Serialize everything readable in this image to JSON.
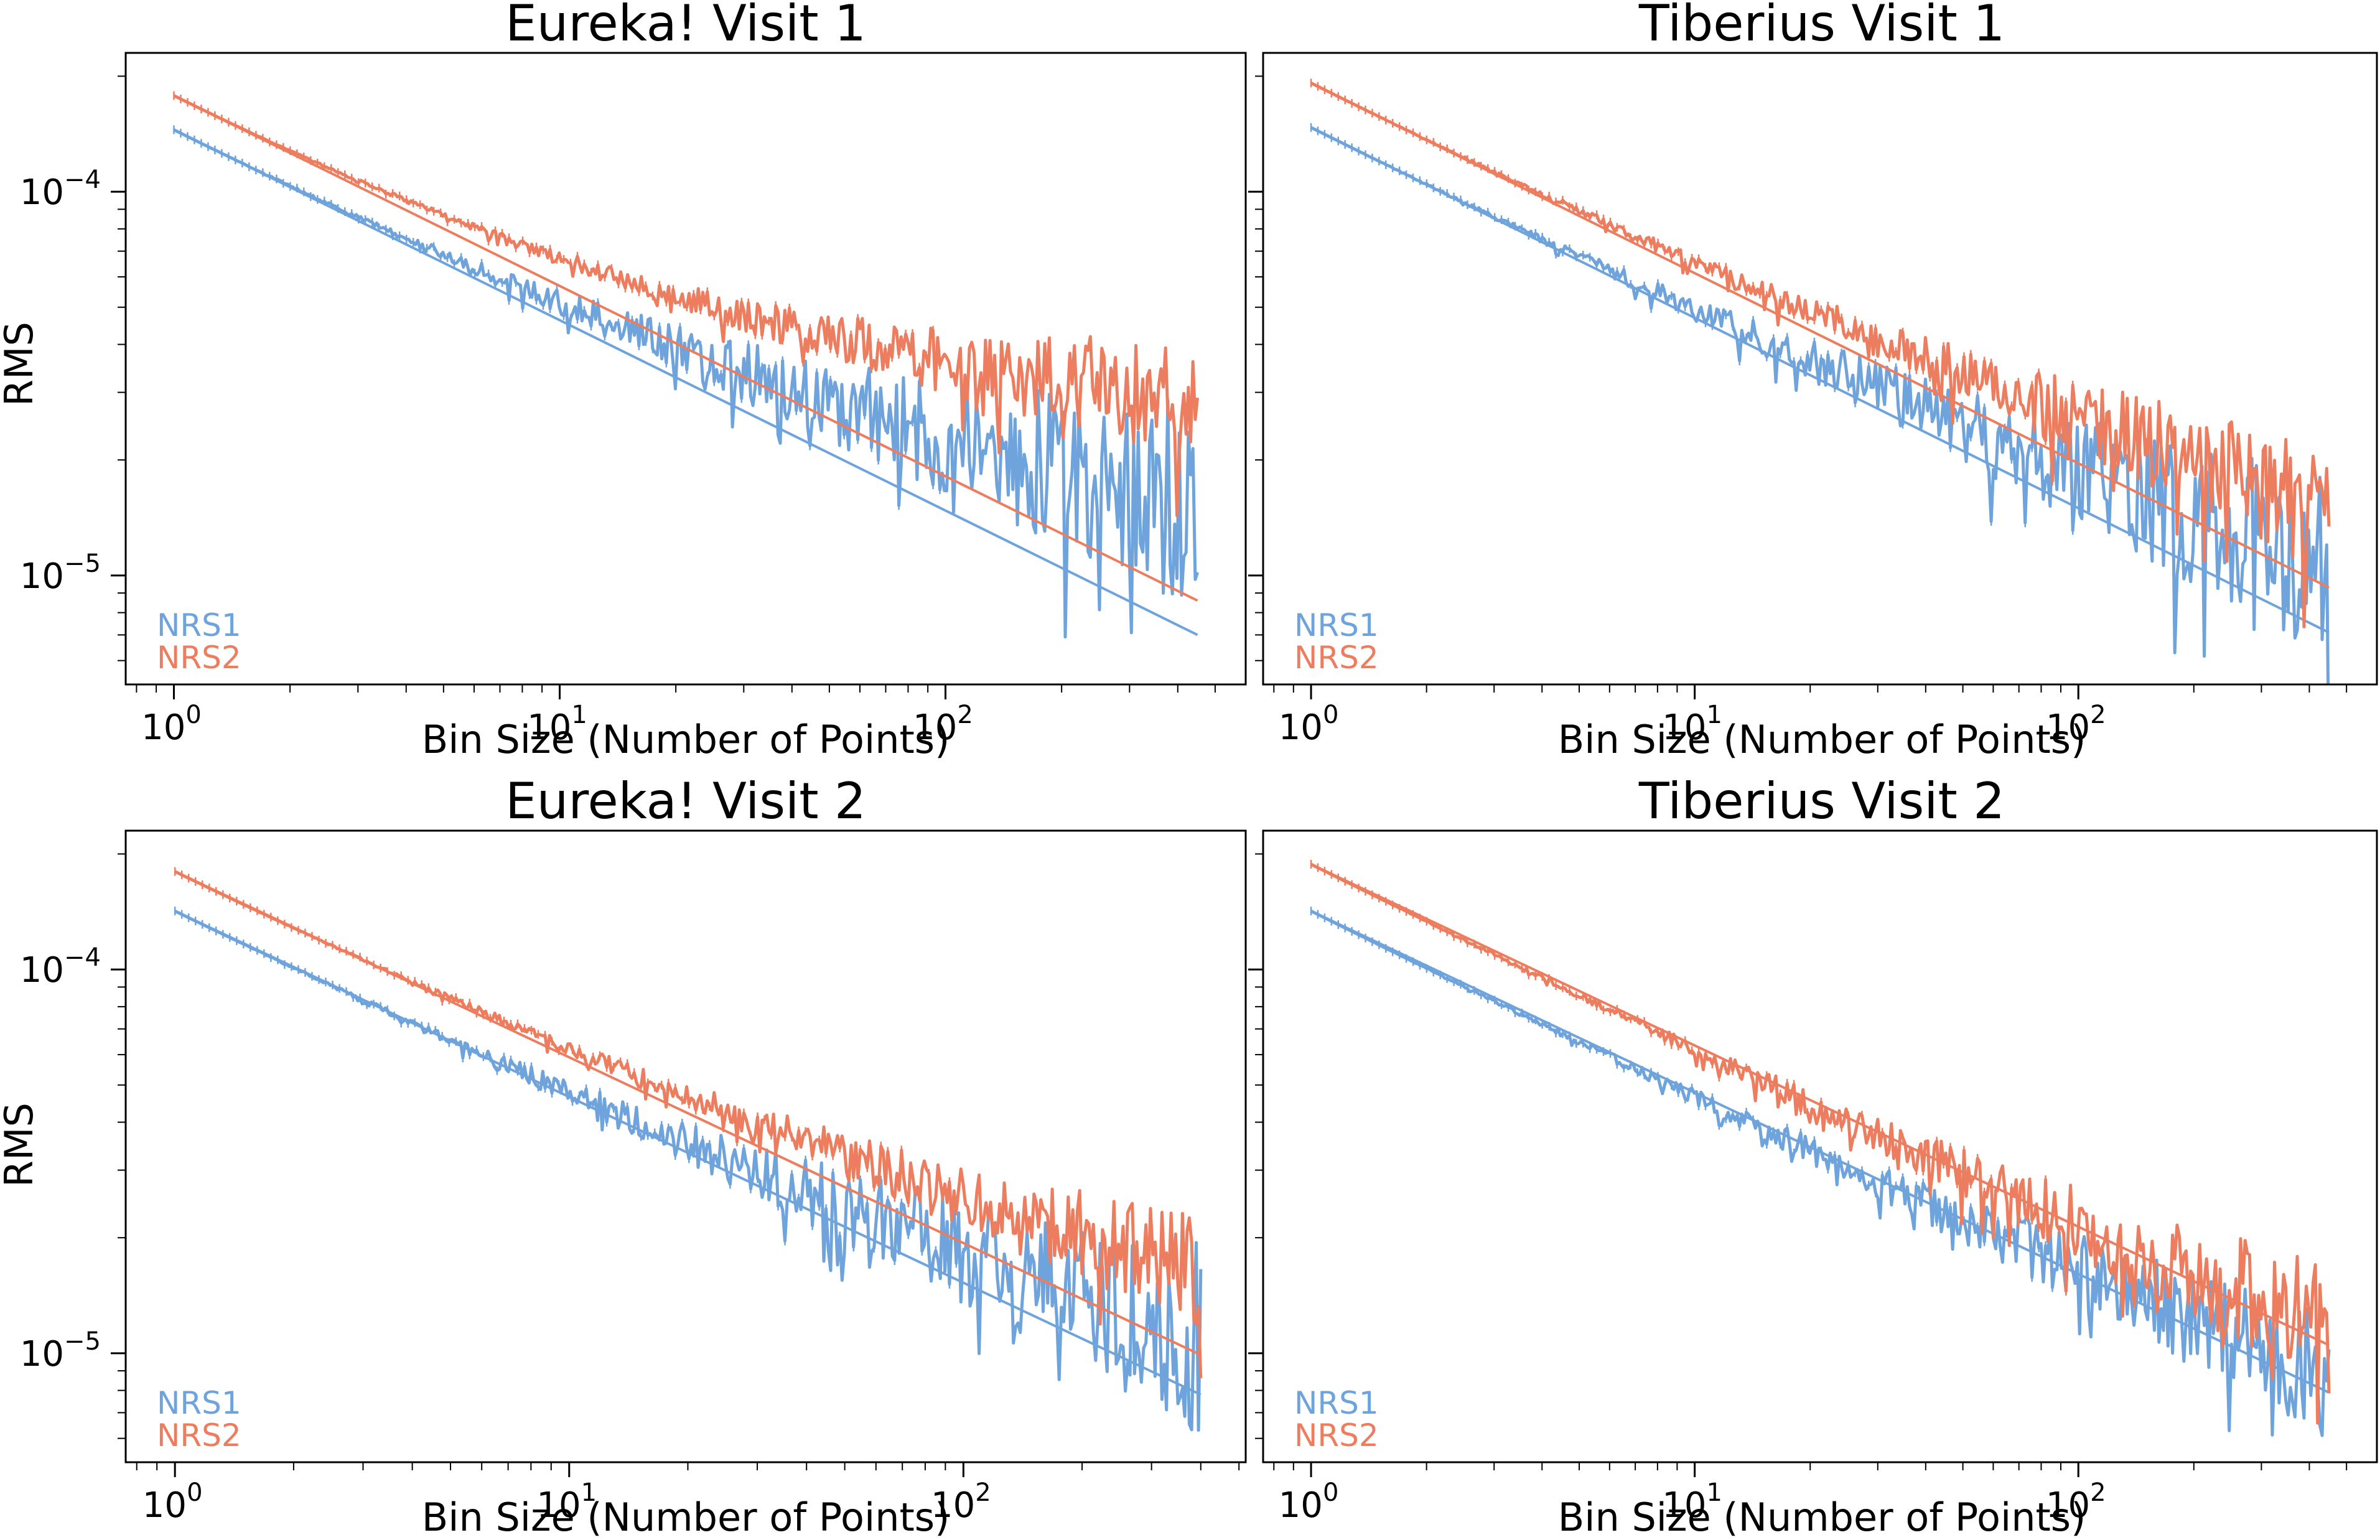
{
  "figure": {
    "ylabel": "RMS"
  },
  "colors": {
    "NRS1": "#6ea3dc",
    "NRS2": "#ec7d5f",
    "axes": "#000000"
  },
  "chart_data": [
    {
      "type": "line",
      "title": "Eureka! Visit 1",
      "xlabel": "Bin Size (Number of Points)",
      "ylabel": "RMS",
      "xscale": "log",
      "yscale": "log",
      "xlim": [
        0.75,
        600
      ],
      "ylim": [
        5.2e-06,
        0.00023
      ],
      "xticks": [
        {
          "base": "10",
          "exp": "0"
        },
        {
          "base": "10",
          "exp": "1"
        },
        {
          "base": "10",
          "exp": "2"
        }
      ],
      "yticks": [
        {
          "base": "10",
          "exp": "−5"
        },
        {
          "base": "10",
          "exp": "−4"
        }
      ],
      "legend": [
        "NRS1",
        "NRS2"
      ],
      "legend_loc": "lower-left",
      "series": [
        {
          "name": "NRS1",
          "kind": "measured",
          "start": 0.000145,
          "knee": 0.09,
          "slope": -0.28,
          "end_bin": 450,
          "noise": 0.28
        },
        {
          "name": "NRS1",
          "kind": "expected",
          "start": 0.000145,
          "end": 7e-06,
          "end_bin": 450
        },
        {
          "name": "NRS2",
          "kind": "measured",
          "start": 0.000178,
          "knee": 0.14,
          "slope": -0.28,
          "end_bin": 450,
          "noise": 0.16
        },
        {
          "name": "NRS2",
          "kind": "expected",
          "start": 0.000178,
          "end": 8.6e-06,
          "end_bin": 450
        }
      ]
    },
    {
      "type": "line",
      "title": "Tiberius Visit 1",
      "xlabel": "Bin Size (Number of Points)",
      "ylabel": "",
      "xscale": "log",
      "yscale": "log",
      "xlim": [
        0.75,
        600
      ],
      "ylim": [
        5.2e-06,
        0.00023
      ],
      "xticks": [
        {
          "base": "10",
          "exp": "0"
        },
        {
          "base": "10",
          "exp": "1"
        },
        {
          "base": "10",
          "exp": "2"
        }
      ],
      "yticks": [
        {
          "base": "10",
          "exp": "−5"
        },
        {
          "base": "10",
          "exp": "−4"
        }
      ],
      "legend": [
        "NRS1",
        "NRS2"
      ],
      "legend_loc": "lower-left",
      "series": [
        {
          "name": "NRS1",
          "kind": "measured",
          "start": 0.000147,
          "knee": 0.05,
          "slope": -0.34,
          "end_bin": 450,
          "noise": 0.26
        },
        {
          "name": "NRS1",
          "kind": "expected",
          "start": 0.000147,
          "end": 7.1e-06,
          "end_bin": 450
        },
        {
          "name": "NRS2",
          "kind": "measured",
          "start": 0.000192,
          "knee": 0.06,
          "slope": -0.33,
          "end_bin": 450,
          "noise": 0.18
        },
        {
          "name": "NRS2",
          "kind": "expected",
          "start": 0.000192,
          "end": 9.3e-06,
          "end_bin": 450
        }
      ]
    },
    {
      "type": "line",
      "title": "Eureka! Visit 2",
      "xlabel": "Bin Size (Number of Points)",
      "ylabel": "RMS",
      "xscale": "log",
      "yscale": "log",
      "xlim": [
        0.75,
        520
      ],
      "ylim": [
        5.2e-06,
        0.00023
      ],
      "xticks": [
        {
          "base": "10",
          "exp": "0"
        },
        {
          "base": "10",
          "exp": "1"
        },
        {
          "base": "10",
          "exp": "2"
        }
      ],
      "yticks": [
        {
          "base": "10",
          "exp": "−5"
        },
        {
          "base": "10",
          "exp": "−4"
        }
      ],
      "legend": [
        "NRS1",
        "NRS2"
      ],
      "legend_loc": "lower-left",
      "series": [
        {
          "name": "NRS1",
          "kind": "measured",
          "start": 0.000142,
          "knee": 0.05,
          "slope": -0.33,
          "end_bin": 400,
          "noise": 0.25
        },
        {
          "name": "NRS1",
          "kind": "expected",
          "start": 0.000142,
          "end": 7.8e-06,
          "end_bin": 400
        },
        {
          "name": "NRS2",
          "kind": "measured",
          "start": 0.00018,
          "knee": 0.07,
          "slope": -0.29,
          "end_bin": 400,
          "noise": 0.15
        },
        {
          "name": "NRS2",
          "kind": "expected",
          "start": 0.00018,
          "end": 9.9e-06,
          "end_bin": 400
        }
      ]
    },
    {
      "type": "line",
      "title": "Tiberius Visit 2",
      "xlabel": "Bin Size (Number of Points)",
      "ylabel": "",
      "xscale": "log",
      "yscale": "log",
      "xlim": [
        0.75,
        600
      ],
      "ylim": [
        5.2e-06,
        0.00023
      ],
      "xticks": [
        {
          "base": "10",
          "exp": "0"
        },
        {
          "base": "10",
          "exp": "1"
        },
        {
          "base": "10",
          "exp": "2"
        }
      ],
      "yticks": [
        {
          "base": "10",
          "exp": "−5"
        },
        {
          "base": "10",
          "exp": "−4"
        }
      ],
      "legend": [
        "NRS1",
        "NRS2"
      ],
      "legend_loc": "lower-left",
      "series": [
        {
          "name": "NRS1",
          "kind": "measured",
          "start": 0.000142,
          "knee": 0.03,
          "slope": -0.34,
          "end_bin": 450,
          "noise": 0.17
        },
        {
          "name": "NRS1",
          "kind": "expected",
          "start": 0.000142,
          "end": 7.9e-06,
          "end_bin": 450
        },
        {
          "name": "NRS2",
          "kind": "measured",
          "start": 0.000188,
          "knee": 0.03,
          "slope": -0.33,
          "end_bin": 450,
          "noise": 0.17
        },
        {
          "name": "NRS2",
          "kind": "expected",
          "start": 0.000188,
          "end": 1.05e-05,
          "end_bin": 450
        }
      ]
    }
  ]
}
